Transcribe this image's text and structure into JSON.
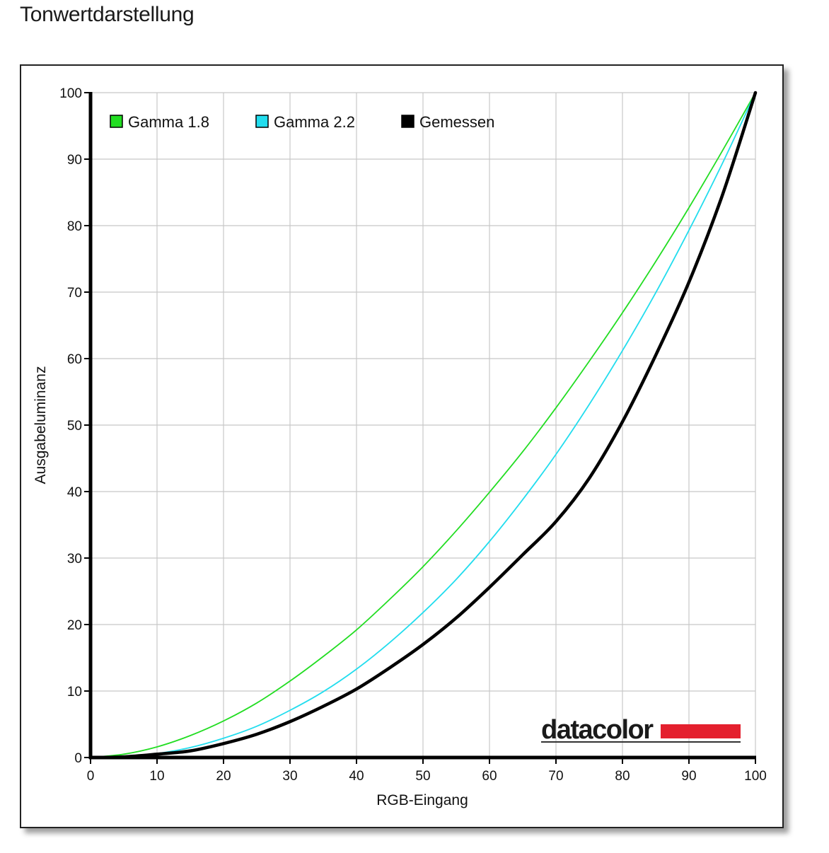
{
  "page": {
    "title": "Tonwertdarstellung"
  },
  "chart_data": {
    "type": "line",
    "xlabel": "RGB-Eingang",
    "ylabel": "Ausgabeluminanz",
    "xlim": [
      0,
      100
    ],
    "ylim": [
      0,
      100
    ],
    "x_ticks": [
      0,
      10,
      20,
      30,
      40,
      50,
      60,
      70,
      80,
      90,
      100
    ],
    "y_ticks": [
      0,
      10,
      20,
      30,
      40,
      50,
      60,
      70,
      80,
      90,
      100
    ],
    "grid": true,
    "legend_position": "top-left",
    "x": [
      0,
      5,
      10,
      15,
      20,
      25,
      30,
      35,
      40,
      45,
      50,
      55,
      60,
      65,
      70,
      75,
      80,
      85,
      90,
      95,
      100
    ],
    "series": [
      {
        "name": "Gamma 1.8",
        "color": "#22dd22",
        "values": [
          0,
          0.5,
          1.6,
          3.3,
          5.5,
          8.2,
          11.5,
          15.2,
          19.2,
          23.8,
          28.7,
          34.1,
          39.9,
          46.0,
          52.6,
          59.6,
          66.9,
          74.6,
          82.7,
          91.2,
          100
        ]
      },
      {
        "name": "Gamma 2.2",
        "color": "#22ddee",
        "values": [
          0,
          0.1,
          0.6,
          1.5,
          2.9,
          4.7,
          7.1,
          9.9,
          13.3,
          17.3,
          21.8,
          26.8,
          32.5,
          38.8,
          45.6,
          53.1,
          61.2,
          69.9,
          79.3,
          89.3,
          100
        ]
      },
      {
        "name": "Gemessen",
        "color": "#000000",
        "values": [
          0,
          0.1,
          0.5,
          1.0,
          2.1,
          3.5,
          5.4,
          7.7,
          10.3,
          13.5,
          17.0,
          21.0,
          25.6,
          30.5,
          35.5,
          42.0,
          50.5,
          60.5,
          71.5,
          84.5,
          100
        ]
      }
    ],
    "logo": {
      "text": "datacolor",
      "accent_color": "#e4202e"
    }
  }
}
